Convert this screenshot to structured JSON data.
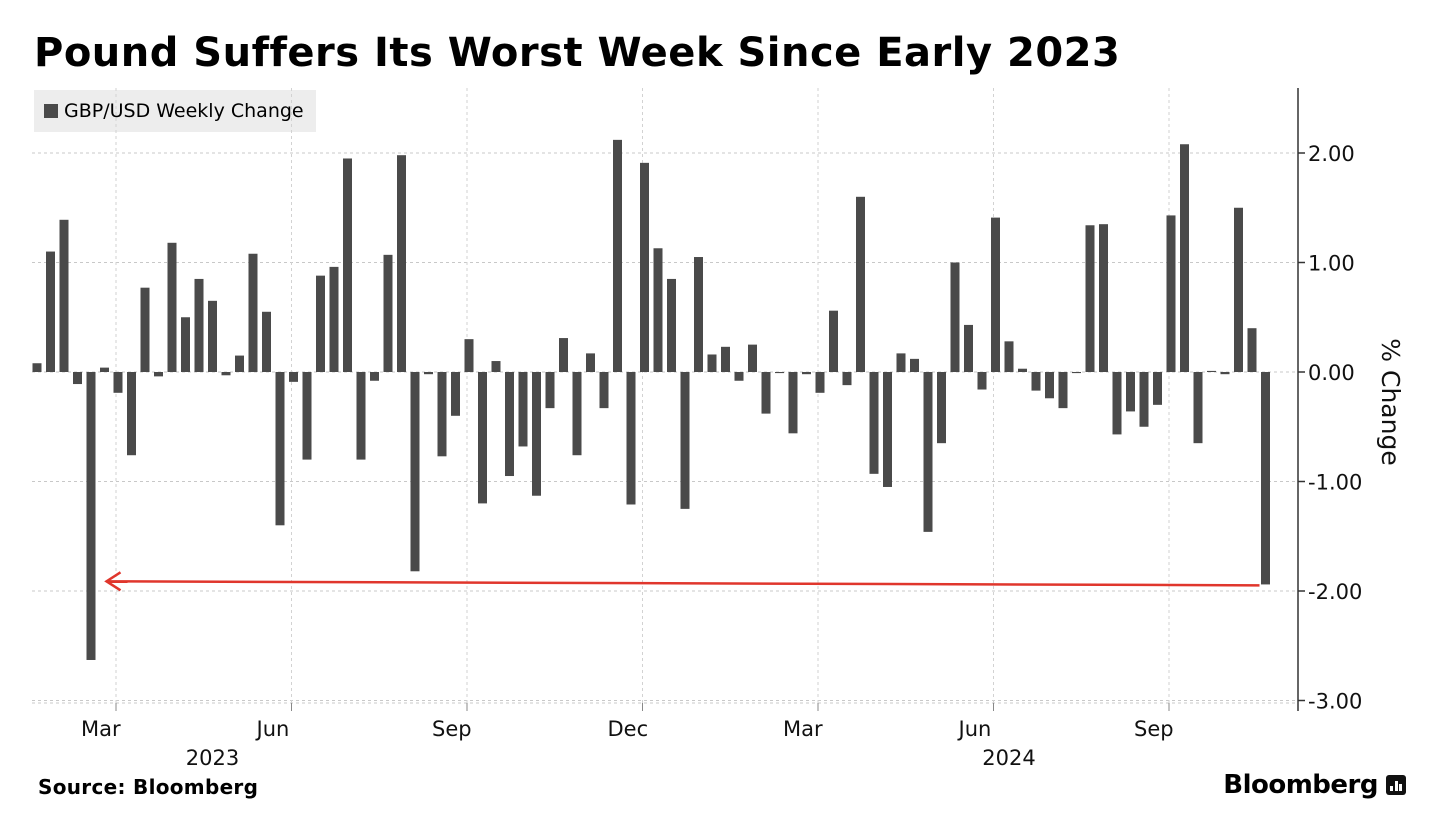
{
  "chart_data": {
    "type": "bar",
    "title": "Pound Suffers Its Worst Week Since Early 2023",
    "legend": {
      "position": "top-left",
      "entries": [
        "GBP/USD Weekly Change"
      ]
    },
    "ylabel": "% Change",
    "ylim": [
      -3.1,
      2.6
    ],
    "yticks": [
      2,
      1,
      0,
      -1,
      -2,
      -3
    ],
    "ytick_labels": [
      "2.00",
      "1.00",
      "0.00",
      "-1.00",
      "-2.00",
      "-3.00"
    ],
    "x_month_ticks": [
      {
        "label": "Mar",
        "index": 6
      },
      {
        "label": "Jun",
        "index": 19
      },
      {
        "label": "Sep",
        "index": 32
      },
      {
        "label": "Dec",
        "index": 45
      },
      {
        "label": "Mar",
        "index": 58
      },
      {
        "label": "Jun",
        "index": 71
      },
      {
        "label": "Sep",
        "index": 84
      }
    ],
    "x_year_labels": [
      {
        "label": "2023",
        "index": 13
      },
      {
        "label": "2024",
        "index": 72
      }
    ],
    "grid": true,
    "color": "#4a4a4a",
    "series": [
      {
        "values": [
          0.08,
          1.1,
          1.39,
          -0.11,
          -2.63,
          0.04,
          -0.19,
          -0.76,
          0.77,
          -0.04,
          1.18,
          0.5,
          0.85,
          0.65,
          -0.03,
          0.15,
          1.08,
          0.55,
          -1.4,
          -0.09,
          -0.8,
          0.88,
          0.96,
          1.95,
          -0.8,
          -0.08,
          1.07,
          1.98,
          -1.82,
          -0.02,
          -0.77,
          -0.4,
          0.3,
          -1.2,
          0.1,
          -0.95,
          -0.68,
          -1.13,
          -0.33,
          0.31,
          -0.76,
          0.17,
          -0.33,
          2.12,
          -1.21,
          1.91,
          1.13,
          0.85,
          -1.25,
          1.05,
          0.16,
          0.23,
          -0.08,
          0.25,
          -0.38,
          -0.01,
          -0.56,
          -0.02,
          -0.19,
          0.56,
          -0.12,
          1.6,
          -0.93,
          -1.05,
          0.17,
          0.12,
          -1.46,
          -0.65,
          1.0,
          0.43,
          -0.16,
          1.41,
          0.28,
          0.03,
          -0.17,
          -0.24,
          -0.33,
          -0.01,
          1.34,
          1.35,
          -0.57,
          -0.36,
          -0.5,
          -0.3,
          1.43,
          2.08,
          -0.65,
          0.01,
          -0.02,
          1.5,
          0.4,
          -1.94
        ]
      }
    ],
    "annotation": {
      "type": "arrow",
      "from_index": 91,
      "to_index": 5,
      "y": -1.93,
      "color": "#e0362c"
    }
  },
  "source": "Source: Bloomberg",
  "brand": "Bloomberg"
}
